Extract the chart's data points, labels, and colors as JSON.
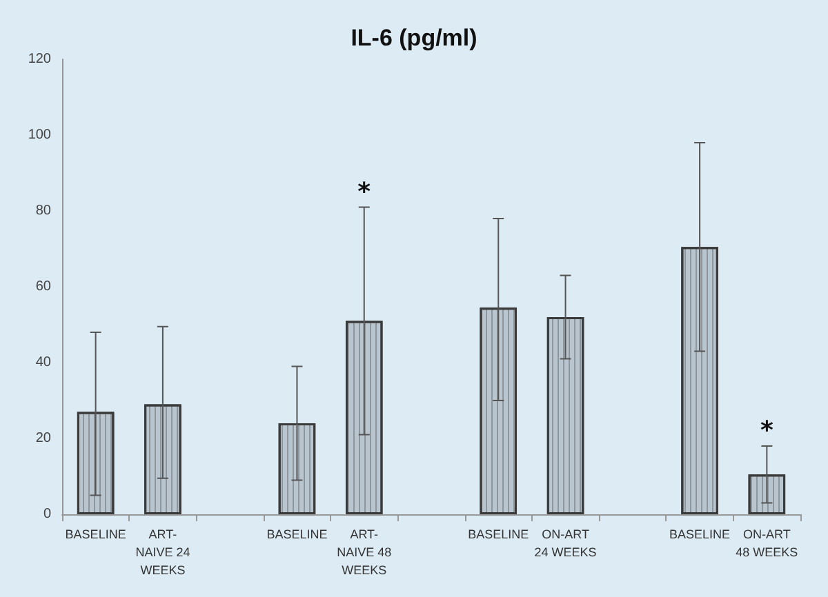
{
  "chart_data": {
    "type": "bar",
    "title": "IL-6 (pg/ml)",
    "categories": [
      "BASELINE",
      "ART-NAIVE 24 WEEKS",
      null,
      "BASELINE",
      "ART-NAIVE 48 WEEKS",
      null,
      "BASELINE",
      "ON-ART 24 WEEKS",
      null,
      "BASELINE",
      "ON-ART 48 WEEKS"
    ],
    "values": [
      27,
      29,
      null,
      24,
      51,
      null,
      54.5,
      52,
      null,
      70.5,
      10.5
    ],
    "errors": [
      [
        5,
        48
      ],
      [
        9.5,
        49.5
      ],
      null,
      [
        9,
        39
      ],
      [
        21,
        81
      ],
      null,
      [
        30,
        78
      ],
      [
        41,
        63
      ],
      null,
      [
        43,
        98
      ],
      [
        3,
        18
      ]
    ],
    "color": "#b9c6cf",
    "ylim": [
      0,
      120
    ],
    "yticks": [
      0,
      20,
      40,
      60,
      80,
      100,
      120
    ],
    "annotations": [
      {
        "text": "*",
        "x": "ART-NAIVE 48 WEEKS",
        "y": 81
      },
      {
        "text": "*",
        "x": "ON-ART 48 WEEKS",
        "y": 18
      }
    ]
  }
}
